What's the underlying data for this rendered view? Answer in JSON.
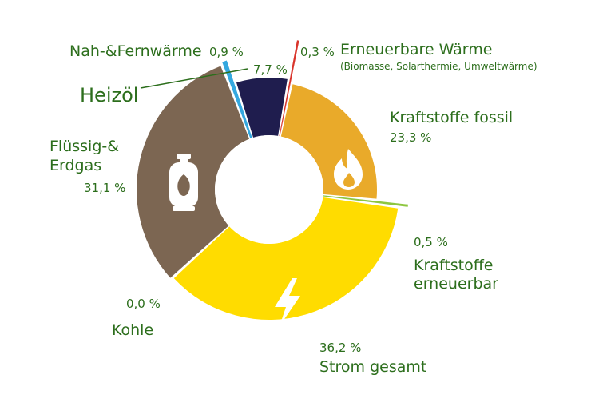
{
  "chart_data": {
    "type": "pie",
    "subtype": "donut",
    "label_color": "#2c6e1c",
    "slices": [
      {
        "key": "erneuerbar_waerme",
        "label": "Erneuerbare Wärme",
        "sublabel": "(Biomasse, Solarthermie, Umweltwärme)",
        "value_label": "0,3 %",
        "value": 0.3,
        "color": "#d9342b"
      },
      {
        "key": "kraftstoffe_fossil",
        "label": "Kraftstoffe fossil",
        "value_label": "23,3 %",
        "value": 23.3,
        "color": "#e9aa2a"
      },
      {
        "key": "kraftstoffe_erneuerbar",
        "label": "Kraftstoffe erneuerbar",
        "label_line1": "Kraftstoffe",
        "label_line2": "erneuerbar",
        "value_label": "0,5 %",
        "value": 0.5,
        "color": "#8dc63f"
      },
      {
        "key": "strom",
        "label": "Strom gesamt",
        "value_label": "36,2 %",
        "value": 36.2,
        "color": "#ffdc00"
      },
      {
        "key": "kohle",
        "label": "Kohle",
        "value_label": "0,0 %",
        "value": 0.0,
        "color": "#5a4a3a"
      },
      {
        "key": "fluessig_erdgas",
        "label": "Flüssig-& Erdgas",
        "label_line1": "Flüssig-&",
        "label_line2": "Erdgas",
        "value_label": "31,1 %",
        "value": 31.1,
        "color": "#7c6652"
      },
      {
        "key": "nah_fernwaerme",
        "label": "Nah-&Fernwärme",
        "value_label": "0,9 %",
        "value": 0.9,
        "color": "#34a8df"
      },
      {
        "key": "heizoel",
        "label": "Heizöl",
        "value_label": "7,7 %",
        "value": 7.7,
        "color": "#1f1d4e"
      }
    ],
    "icons": {
      "kraftstoffe_fossil": "flame-icon",
      "strom": "lightning-icon",
      "fluessig_erdgas": "gas-bottle-icon"
    }
  }
}
